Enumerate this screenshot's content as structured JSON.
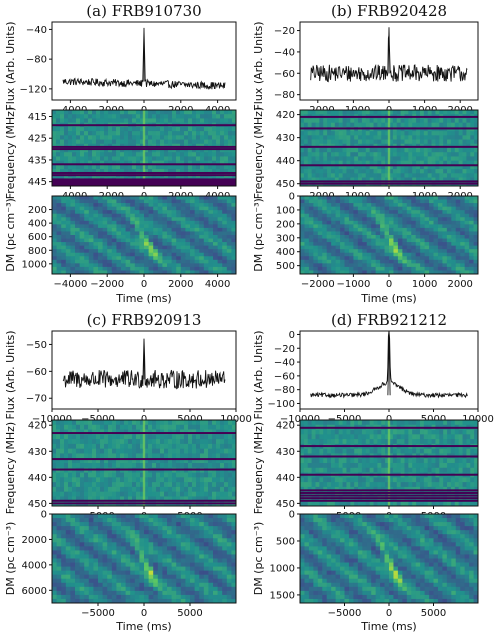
{
  "chart_data": [
    {
      "title": "(a) FRB910730",
      "x_unit_label": "Time (ms)",
      "flux": {
        "type": "line",
        "ylabel": "Flux (Arb. Units)",
        "xlim": [
          -5000,
          5000
        ],
        "ylim": [
          -135,
          -30
        ],
        "xticks": [
          -4000,
          -2000,
          0,
          2000,
          4000
        ],
        "yticks": [
          -40,
          -80,
          -120
        ],
        "baseline": -110,
        "noise": 5,
        "peak_t": 0,
        "peak_value": -38,
        "peak_width_ms": 45,
        "hump_amp": 0,
        "hump_width_ms": 0,
        "trend": [
          -110,
          -116
        ]
      },
      "spectrum": {
        "type": "heatmap",
        "ylabel": "Frequency (MHz)",
        "ylim": [
          412,
          447
        ],
        "xticks": [
          -4000,
          -2000,
          0,
          2000,
          4000
        ],
        "yticks": [
          415,
          425,
          435,
          445
        ],
        "flagged_mhz": [
          419,
          429,
          430,
          437,
          441,
          442
        ]
      },
      "dm": {
        "type": "heatmap",
        "ylabel": "DM (pc cm⁻³)",
        "ylim": [
          0,
          1150
        ],
        "xticks": [
          -4000,
          -2000,
          0,
          2000,
          4000
        ],
        "yticks": [
          200,
          400,
          600,
          800,
          1000
        ]
      }
    },
    {
      "title": "(b) FRB920428",
      "x_unit_label": "Time (ms)",
      "flux": {
        "type": "line",
        "ylabel": "Flux (Arb. Units)",
        "xlim": [
          -2500,
          2500
        ],
        "ylim": [
          -85,
          -12
        ],
        "xticks": [
          -2000,
          -1000,
          0,
          1000,
          2000
        ],
        "yticks": [
          -20,
          -40,
          -60,
          -80
        ],
        "baseline": -60,
        "noise": 8,
        "peak_t": 0,
        "peak_value": -17,
        "peak_width_ms": 25,
        "hump_amp": 0,
        "hump_width_ms": 0,
        "trend": [
          -60,
          -60
        ]
      },
      "spectrum": {
        "type": "heatmap",
        "ylabel": "Frequency (MHz)",
        "ylim": [
          418,
          451
        ],
        "xticks": [
          -2000,
          -1000,
          0,
          1000,
          2000
        ],
        "yticks": [
          420,
          430,
          440,
          450
        ],
        "flagged_mhz": [
          421,
          426,
          434,
          442,
          449,
          450
        ]
      },
      "dm": {
        "type": "heatmap",
        "ylabel": "DM (pc cm⁻³)",
        "ylim": [
          0,
          560
        ],
        "xticks": [
          -2000,
          -1000,
          0,
          1000,
          2000
        ],
        "yticks": [
          0,
          100,
          200,
          300,
          400,
          500
        ]
      }
    },
    {
      "title": "(c) FRB920913",
      "x_unit_label": "Time (ms)",
      "flux": {
        "type": "line",
        "ylabel": "Flux (Arb. Units)",
        "xlim": [
          -10000,
          10000
        ],
        "ylim": [
          -74,
          -45
        ],
        "xticks": [
          -10000,
          -5000,
          0,
          5000,
          10000
        ],
        "yticks": [
          -50,
          -60,
          -70
        ],
        "baseline": -63,
        "noise": 3.5,
        "peak_t": 0,
        "peak_value": -48,
        "peak_width_ms": 80,
        "hump_amp": 0,
        "hump_width_ms": 0,
        "trend": [
          -63,
          -63
        ]
      },
      "spectrum": {
        "type": "heatmap",
        "ylabel": "Frequency (MHz)",
        "ylim": [
          418,
          451
        ],
        "xticks": [
          -5000,
          0,
          5000
        ],
        "yticks": [
          420,
          430,
          440,
          450
        ],
        "flagged_mhz": [
          423,
          433,
          437,
          449,
          450
        ]
      },
      "dm": {
        "type": "heatmap",
        "ylabel": "DM (pc cm⁻³)",
        "ylim": [
          0,
          7000
        ],
        "xticks": [
          -5000,
          0,
          5000
        ],
        "yticks": [
          0,
          2000,
          4000,
          6000
        ]
      }
    },
    {
      "title": "(d) FRB921212",
      "x_unit_label": "Time (ms)",
      "flux": {
        "type": "line",
        "ylabel": "Flux (Arb. Units)",
        "xlim": [
          -10000,
          10000
        ],
        "ylim": [
          -108,
          5
        ],
        "xticks": [
          -10000,
          -5000,
          0,
          5000,
          10000
        ],
        "yticks": [
          0,
          -20,
          -40,
          -60,
          -80,
          -100
        ],
        "baseline": -88,
        "noise": 3,
        "peak_t": 0,
        "peak_value": 2,
        "peak_width_ms": 120,
        "hump_amp": 18,
        "hump_width_ms": 1800,
        "trend": [
          -88,
          -88
        ]
      },
      "spectrum": {
        "type": "heatmap",
        "ylabel": "Frequency (MHz)",
        "ylim": [
          418,
          451
        ],
        "xticks": [
          -5000,
          0,
          5000
        ],
        "yticks": [
          420,
          430,
          440,
          450
        ],
        "flagged_mhz": [
          421,
          428,
          432,
          439,
          445,
          446,
          447,
          448,
          449
        ]
      },
      "dm": {
        "type": "heatmap",
        "ylabel": "DM (pc cm⁻³)",
        "ylim": [
          0,
          1650
        ],
        "xticks": [
          -5000,
          0,
          5000
        ],
        "yticks": [
          0,
          500,
          1000,
          1500
        ]
      }
    }
  ],
  "colors": {
    "line": "#111111",
    "viridis_low": "#440154",
    "viridis_mid": "#21918c",
    "viridis_high": "#fde725"
  }
}
